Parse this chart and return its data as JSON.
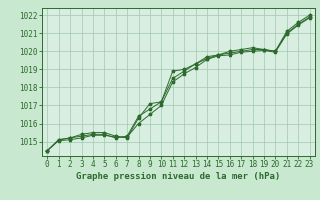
{
  "background_color": "#c8e8d0",
  "plot_bg_color": "#d8eee0",
  "grid_color": "#a0c8b0",
  "line_color": "#2d6a2d",
  "marker_color": "#2d6a2d",
  "title": "Graphe pression niveau de la mer (hPa)",
  "xlim": [
    -0.5,
    23.5
  ],
  "ylim": [
    1014.2,
    1022.4
  ],
  "yticks": [
    1015,
    1016,
    1017,
    1018,
    1019,
    1020,
    1021,
    1022
  ],
  "xticks": [
    0,
    1,
    2,
    3,
    4,
    5,
    6,
    7,
    8,
    9,
    10,
    11,
    12,
    13,
    14,
    15,
    16,
    17,
    18,
    19,
    20,
    21,
    22,
    23
  ],
  "line1_y": [
    1014.5,
    1015.1,
    1015.2,
    1015.3,
    1015.4,
    1015.4,
    1015.2,
    1015.3,
    1016.4,
    1016.8,
    1017.2,
    1018.5,
    1018.9,
    1019.3,
    1019.6,
    1019.8,
    1019.9,
    1020.0,
    1020.1,
    1020.1,
    1020.0,
    1021.0,
    1021.5,
    1021.9
  ],
  "line2_y": [
    1014.5,
    1015.1,
    1015.2,
    1015.4,
    1015.5,
    1015.5,
    1015.3,
    1015.2,
    1016.3,
    1017.1,
    1017.2,
    1018.9,
    1019.0,
    1019.3,
    1019.7,
    1019.8,
    1020.0,
    1020.1,
    1020.2,
    1020.1,
    1020.0,
    1021.1,
    1021.6,
    1022.0
  ],
  "line3_y": [
    1014.5,
    1015.05,
    1015.1,
    1015.2,
    1015.35,
    1015.35,
    1015.25,
    1015.25,
    1016.0,
    1016.5,
    1017.0,
    1018.3,
    1018.75,
    1019.1,
    1019.55,
    1019.75,
    1019.8,
    1019.95,
    1020.0,
    1020.05,
    1019.95,
    1020.95,
    1021.45,
    1021.85
  ],
  "title_fontsize": 6.5,
  "tick_fontsize": 5.5
}
